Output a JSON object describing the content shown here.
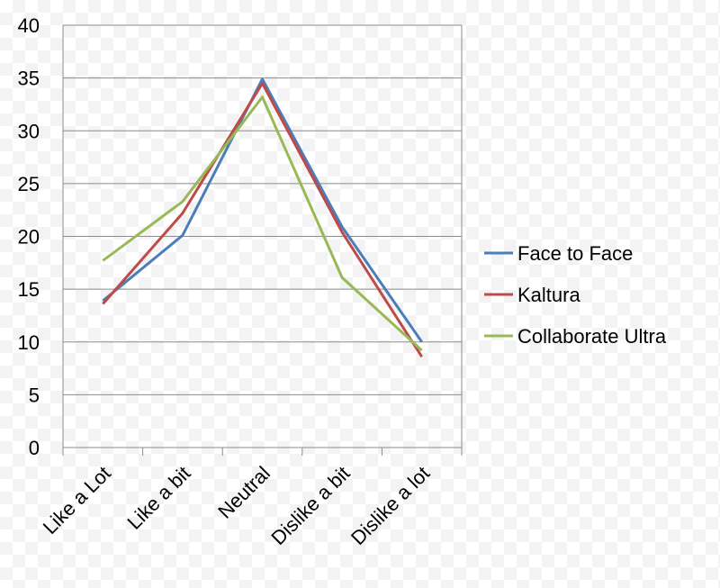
{
  "chart_data": {
    "type": "line",
    "categories": [
      "Like a Lot",
      "Like a bit",
      "Neutral",
      "Dislike a bit",
      "Dislike a lot"
    ],
    "series": [
      {
        "name": "Face to Face",
        "color": "#4a7ebb",
        "values": [
          13.9,
          20.1,
          34.9,
          20.9,
          10.0
        ]
      },
      {
        "name": "Kaltura",
        "color": "#be4b48",
        "values": [
          13.6,
          22.2,
          34.5,
          20.4,
          8.6
        ]
      },
      {
        "name": "Collaborate Ultra",
        "color": "#98b954",
        "values": [
          17.7,
          23.3,
          33.2,
          16.1,
          9.2
        ]
      }
    ],
    "ylim": [
      0,
      40
    ],
    "yticks": [
      0,
      5,
      10,
      15,
      20,
      25,
      30,
      35,
      40
    ],
    "grid": true,
    "legend": "right"
  }
}
